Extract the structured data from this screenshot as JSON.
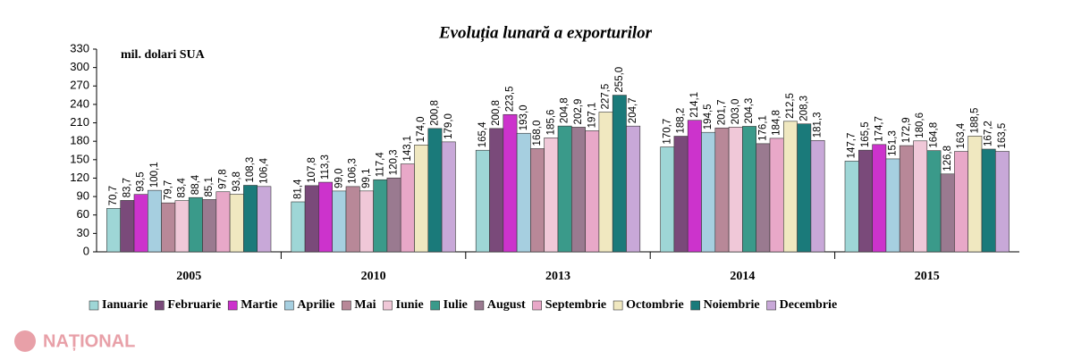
{
  "chart_data": {
    "type": "bar",
    "title": "Evoluția lunară a exporturilor",
    "y_label": "mil. dolari SUA",
    "watermark": "NAȚIONAL",
    "categories": [
      "2005",
      "2010",
      "2013",
      "2014",
      "2015"
    ],
    "ylim": [
      0,
      330
    ],
    "yticks": [
      0,
      30,
      60,
      90,
      120,
      150,
      180,
      210,
      240,
      270,
      300,
      330
    ],
    "series": [
      {
        "name": "Ianuarie",
        "color": "#9ed6d6",
        "values": [
          70.7,
          81.4,
          165.4,
          170.7,
          147.7
        ],
        "value_labels": [
          "70,7",
          "81,4",
          "165,4",
          "170,7",
          "147,7"
        ]
      },
      {
        "name": "Februarie",
        "color": "#7a4a7a",
        "values": [
          83.7,
          107.8,
          200.8,
          188.2,
          165.5
        ],
        "value_labels": [
          "83,7",
          "107,8",
          "200,8",
          "188,2",
          "165,5"
        ]
      },
      {
        "name": "Martie",
        "color": "#cc33cc",
        "values": [
          93.5,
          113.3,
          223.5,
          214.1,
          174.7
        ],
        "value_labels": [
          "93,5",
          "113,3",
          "223,5",
          "214,1",
          "174,7"
        ]
      },
      {
        "name": "Aprilie",
        "color": "#a6cfe0",
        "values": [
          100.1,
          99.0,
          193.0,
          194.5,
          151.3
        ],
        "value_labels": [
          "100,1",
          "99,0",
          "193,0",
          "194,5",
          "151,3"
        ]
      },
      {
        "name": "Mai",
        "color": "#b88898",
        "values": [
          79.7,
          106.3,
          168.0,
          201.7,
          172.9
        ],
        "value_labels": [
          "79,7",
          "106,3",
          "168,0",
          "201,7",
          "172,9"
        ]
      },
      {
        "name": "Iunie",
        "color": "#f0c8d8",
        "values": [
          83.4,
          99.1,
          185.6,
          203.0,
          180.6
        ],
        "value_labels": [
          "83,4",
          "99,1",
          "185,6",
          "203,0",
          "180,6"
        ]
      },
      {
        "name": "Iulie",
        "color": "#3a9a8a",
        "values": [
          88.4,
          117.4,
          204.8,
          204.3,
          164.8
        ],
        "value_labels": [
          "88,4",
          "117,4",
          "204,8",
          "204,3",
          "164,8"
        ]
      },
      {
        "name": "August",
        "color": "#9a7a90",
        "values": [
          85.1,
          120.3,
          202.9,
          176.1,
          126.8
        ],
        "value_labels": [
          "85,1",
          "120,3",
          "202,9",
          "176,1",
          "126,8"
        ]
      },
      {
        "name": "Septembrie",
        "color": "#e8a8c8",
        "values": [
          97.8,
          143.1,
          197.1,
          184.8,
          163.4
        ],
        "value_labels": [
          "97,8",
          "143,1",
          "197,1",
          "184,8",
          "163,4"
        ]
      },
      {
        "name": "Octombrie",
        "color": "#f0e8c0",
        "values": [
          93.8,
          174.0,
          227.5,
          212.5,
          188.5
        ],
        "value_labels": [
          "93,8",
          "174,0",
          "227,5",
          "212,5",
          "188,5"
        ]
      },
      {
        "name": "Noiembrie",
        "color": "#1a7a7a",
        "values": [
          108.3,
          200.8,
          255.0,
          208.3,
          167.2
        ],
        "value_labels": [
          "108,3",
          "200,8",
          "255,0",
          "208,3",
          "167,2"
        ]
      },
      {
        "name": "Decembrie",
        "color": "#c8a8d8",
        "values": [
          106.4,
          179.0,
          204.7,
          181.3,
          163.5
        ],
        "value_labels": [
          "106,4",
          "179,0",
          "204,7",
          "181,3",
          "163,5"
        ]
      }
    ]
  }
}
